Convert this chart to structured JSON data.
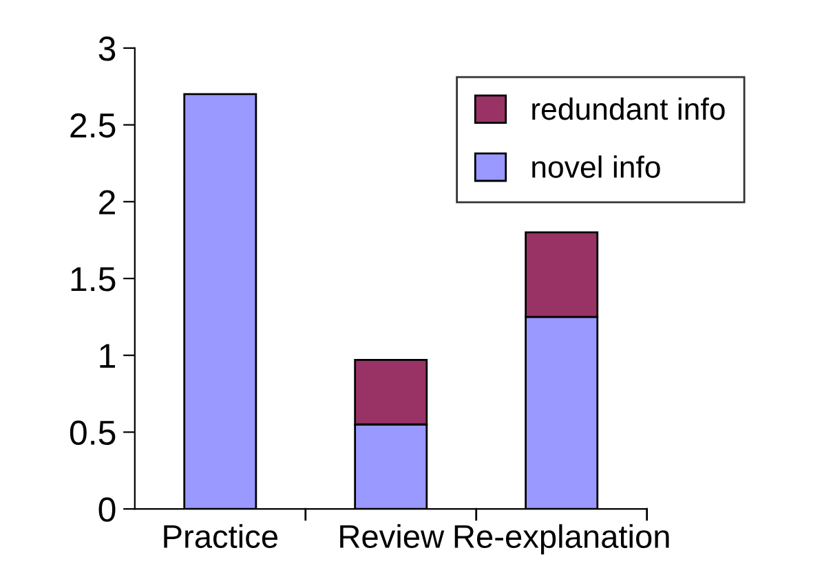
{
  "chart_data": {
    "type": "bar",
    "stacked": true,
    "categories": [
      "Practice",
      "Review",
      "Re-explanation"
    ],
    "series": [
      {
        "name": "novel info",
        "color": "#9999ff",
        "values": [
          2.7,
          0.55,
          1.25
        ]
      },
      {
        "name": "redundant info",
        "color": "#993366",
        "values": [
          null,
          0.42,
          0.55
        ]
      }
    ],
    "ylim": [
      0,
      3
    ],
    "yticks": [
      0,
      0.5,
      1,
      1.5,
      2,
      2.5,
      3
    ],
    "grid": false,
    "legend": "top right"
  }
}
